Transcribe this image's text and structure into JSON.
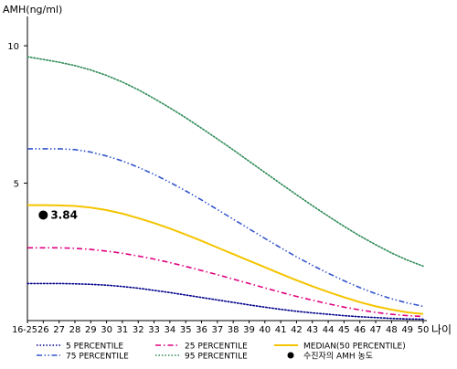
{
  "chart_data": {
    "type": "line",
    "ylabel": "AMH(ng/ml)",
    "xlabel": "나이",
    "x_ticks": [
      "16-25",
      "26",
      "27",
      "28",
      "29",
      "30",
      "31",
      "32",
      "33",
      "34",
      "35",
      "36",
      "37",
      "38",
      "39",
      "40",
      "41",
      "42",
      "43",
      "44",
      "45",
      "46",
      "47",
      "48",
      "49",
      "50"
    ],
    "y_ticks": [
      5,
      10
    ],
    "ylim": [
      0,
      11
    ],
    "grid": false,
    "legend_position": "bottom",
    "series": [
      {
        "name": "5 PERCENTILE",
        "color": "#00008B",
        "style": "dotted",
        "values": [
          1.35,
          1.35,
          1.35,
          1.34,
          1.32,
          1.29,
          1.24,
          1.18,
          1.1,
          1.02,
          0.93,
          0.84,
          0.75,
          0.66,
          0.57,
          0.49,
          0.41,
          0.34,
          0.28,
          0.23,
          0.18,
          0.14,
          0.11,
          0.08,
          0.06,
          0.05
        ]
      },
      {
        "name": "25 PERCENTILE",
        "color": "#E0007F",
        "style": "dashdot",
        "values": [
          2.65,
          2.65,
          2.65,
          2.63,
          2.59,
          2.53,
          2.45,
          2.35,
          2.24,
          2.11,
          1.97,
          1.82,
          1.67,
          1.51,
          1.35,
          1.19,
          1.03,
          0.88,
          0.74,
          0.61,
          0.49,
          0.39,
          0.3,
          0.23,
          0.18,
          0.15
        ]
      },
      {
        "name": "MEDIAN(50 PERCENTILE)",
        "color": "#F5C400",
        "style": "solid",
        "values": [
          4.2,
          4.2,
          4.19,
          4.17,
          4.11,
          4.02,
          3.89,
          3.73,
          3.55,
          3.35,
          3.13,
          2.9,
          2.66,
          2.42,
          2.18,
          1.94,
          1.7,
          1.47,
          1.25,
          1.04,
          0.85,
          0.67,
          0.52,
          0.4,
          0.3,
          0.24
        ]
      },
      {
        "name": "75 PERCENTILE",
        "color": "#3355CC",
        "style": "dashdotdot",
        "values": [
          6.25,
          6.25,
          6.25,
          6.22,
          6.13,
          5.99,
          5.81,
          5.58,
          5.32,
          5.03,
          4.72,
          4.39,
          4.04,
          3.69,
          3.34,
          2.99,
          2.65,
          2.32,
          2.01,
          1.72,
          1.45,
          1.2,
          0.98,
          0.79,
          0.64,
          0.52
        ]
      },
      {
        "name": "95 PERCENTILE",
        "color": "#2E8B57",
        "style": "dotted",
        "values": [
          9.6,
          9.5,
          9.4,
          9.28,
          9.12,
          8.92,
          8.68,
          8.4,
          8.08,
          7.74,
          7.38,
          7.0,
          6.61,
          6.21,
          5.8,
          5.39,
          4.98,
          4.58,
          4.18,
          3.8,
          3.43,
          3.08,
          2.76,
          2.46,
          2.2,
          1.98
        ]
      }
    ],
    "marker": {
      "name": "수진자의 AMH 농도",
      "x": "26",
      "y": 3.84,
      "label": "3.84",
      "color": "#000000"
    }
  }
}
